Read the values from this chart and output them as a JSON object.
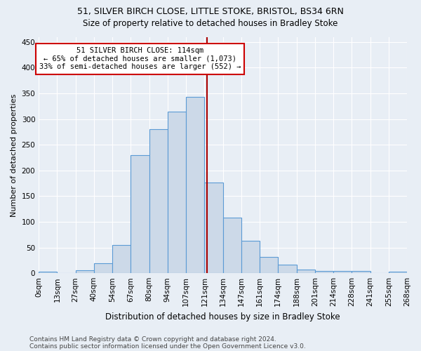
{
  "title1": "51, SILVER BIRCH CLOSE, LITTLE STOKE, BRISTOL, BS34 6RN",
  "title2": "Size of property relative to detached houses in Bradley Stoke",
  "xlabel": "Distribution of detached houses by size in Bradley Stoke",
  "ylabel": "Number of detached properties",
  "footnote1": "Contains HM Land Registry data © Crown copyright and database right 2024.",
  "footnote2": "Contains public sector information licensed under the Open Government Licence v3.0.",
  "bin_labels": [
    "0sqm",
    "13sqm",
    "27sqm",
    "40sqm",
    "54sqm",
    "67sqm",
    "80sqm",
    "94sqm",
    "107sqm",
    "121sqm",
    "134sqm",
    "147sqm",
    "161sqm",
    "174sqm",
    "188sqm",
    "201sqm",
    "214sqm",
    "228sqm",
    "241sqm",
    "255sqm",
    "268sqm"
  ],
  "bar_heights": [
    3,
    0,
    6,
    20,
    55,
    230,
    280,
    315,
    343,
    176,
    108,
    63,
    32,
    17,
    7,
    4,
    4,
    4,
    0,
    3
  ],
  "bar_color": "#ccd9e8",
  "bar_edge_color": "#5b9bd5",
  "vline_x": 9.15,
  "vline_color": "#aa0000",
  "annotation_text": "51 SILVER BIRCH CLOSE: 114sqm\n← 65% of detached houses are smaller (1,073)\n33% of semi-detached houses are larger (552) →",
  "annotation_box_color": "#ffffff",
  "annotation_box_edge": "#cc0000",
  "ylim": [
    0,
    460
  ],
  "background_color": "#e8eef5",
  "grid_color": "#ffffff",
  "title1_fontsize": 9,
  "title2_fontsize": 8.5,
  "ylabel_fontsize": 8,
  "xlabel_fontsize": 8.5,
  "tick_fontsize": 7.5,
  "footnote_fontsize": 6.5
}
